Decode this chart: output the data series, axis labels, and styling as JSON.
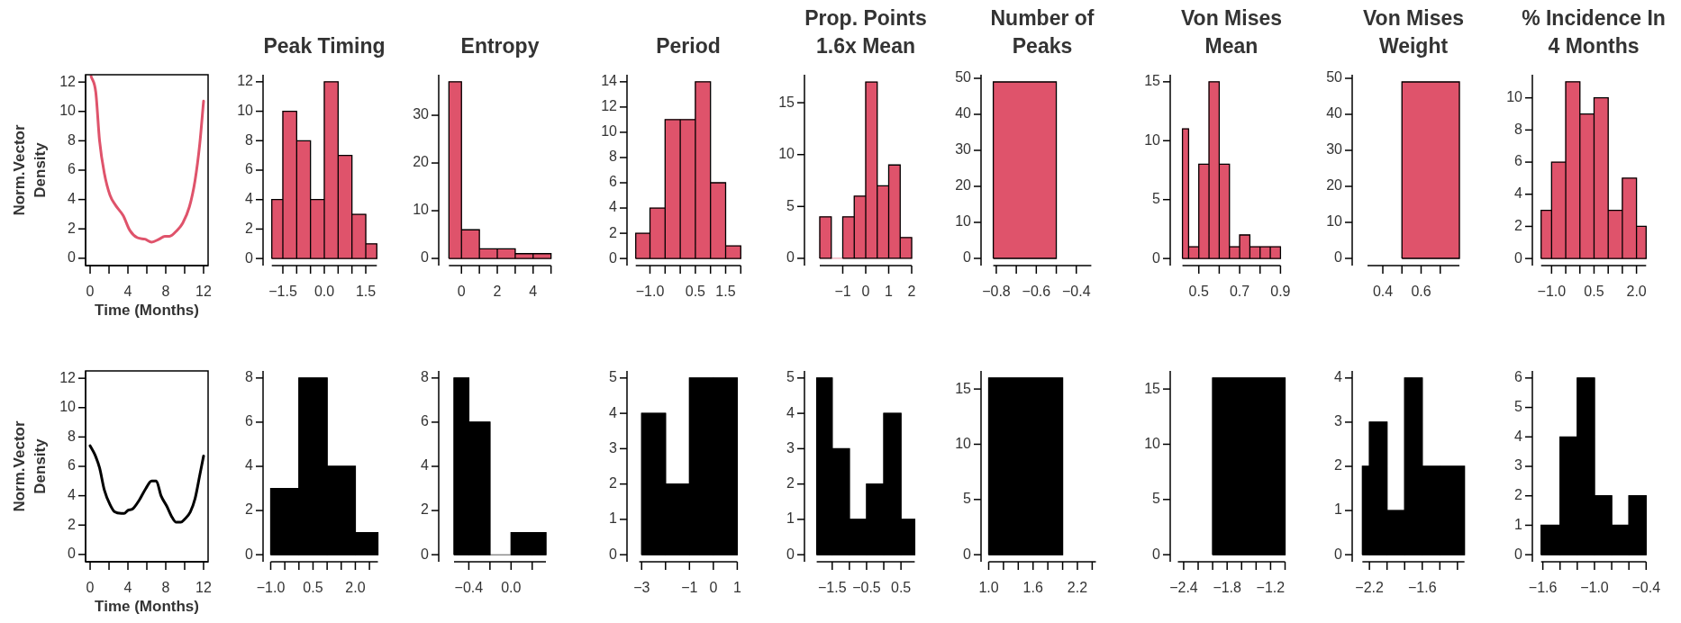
{
  "chart_data": [
    {
      "type": "line",
      "xlabel": "Time (Months)",
      "ylabel": "Norm.Vector Density",
      "color": "#df536b",
      "x": [
        0.1,
        0.6,
        1.0,
        1.5,
        2.1,
        2.7,
        3.5,
        4.2,
        5.0,
        5.8,
        6.5,
        7.3,
        7.9,
        8.4,
        9.2,
        9.8,
        10.5,
        11.1,
        11.6,
        12.0
      ],
      "values": [
        12.4,
        11.3,
        8.0,
        5.8,
        4.3,
        3.6,
        2.9,
        1.9,
        1.4,
        1.3,
        1.1,
        1.3,
        1.5,
        1.5,
        1.9,
        2.4,
        3.5,
        5.3,
        7.8,
        10.7
      ],
      "xlim": [
        -0.48,
        12.48
      ],
      "ylim": [
        -0.5,
        12.5
      ],
      "xticks": [
        0,
        {
          "value": 2,
          "label": null
        },
        4,
        {
          "value": 6,
          "label": null
        },
        8,
        {
          "value": 10,
          "label": null
        },
        12
      ],
      "yticks": [
        0,
        2,
        4,
        6,
        8,
        10,
        12
      ]
    },
    {
      "type": "histogram",
      "title": "Peak Timing",
      "color": "#df536b",
      "bins": [
        -1.9,
        -1.5,
        -1,
        -0.5,
        0,
        0.5,
        1,
        1.5,
        1.9
      ],
      "values": [
        4,
        10,
        8,
        4,
        12,
        7,
        3,
        1
      ],
      "xlim": [
        -1.9,
        1.9
      ],
      "ylim": [
        -0.48,
        12.48
      ],
      "xticks": [
        {
          "value": -1.5,
          "label": "−1.5"
        },
        {
          "value": -1,
          "label": null
        },
        {
          "value": -0.5,
          "label": null
        },
        {
          "value": 0,
          "label": "0.0"
        },
        {
          "value": 0.5,
          "label": null
        },
        {
          "value": 1,
          "label": null
        },
        {
          "value": 1.5,
          "label": "1.5"
        }
      ],
      "yticks": [
        0,
        2,
        4,
        6,
        8,
        10,
        12
      ]
    },
    {
      "type": "histogram",
      "title": "Entropy",
      "color": "#df536b",
      "bins": [
        -0.7,
        0,
        1,
        2,
        3,
        4,
        5
      ],
      "values": [
        37,
        6,
        2,
        2,
        1,
        1
      ],
      "xlim": [
        -0.7,
        5
      ],
      "ylim": [
        -1.5,
        38.5
      ],
      "xticks": [
        0,
        {
          "value": 1,
          "label": null
        },
        2,
        {
          "value": 3,
          "label": null
        },
        4,
        {
          "value": 5,
          "label": null
        }
      ],
      "yticks": [
        0,
        10,
        20,
        30
      ]
    },
    {
      "type": "histogram",
      "title": "Period",
      "color": "#df536b",
      "bins": [
        -1.47,
        -1,
        -0.5,
        0,
        0.5,
        1,
        1.5,
        2
      ],
      "values": [
        2,
        4,
        11,
        11,
        14,
        6,
        1
      ],
      "xlim": [
        -1.47,
        2
      ],
      "ylim": [
        -0.56,
        14.56
      ],
      "xticks": [
        {
          "value": -1,
          "label": "−1.0"
        },
        {
          "value": -0.5,
          "label": null
        },
        {
          "value": 0,
          "label": null
        },
        {
          "value": 0.5,
          "label": "0.5"
        },
        {
          "value": 1,
          "label": null
        },
        {
          "value": 1.5,
          "label": "1.5"
        },
        {
          "value": 2,
          "label": null
        }
      ],
      "yticks": [
        0,
        2,
        4,
        6,
        8,
        10,
        12,
        14
      ]
    },
    {
      "type": "histogram",
      "title": "Prop. Points 1.6x Mean",
      "color": "#df536b",
      "bins": [
        -2,
        -1.5,
        -1,
        -0.5,
        0,
        0.5,
        1,
        1.5,
        2
      ],
      "values": [
        4,
        0,
        4,
        6,
        17,
        7,
        9,
        2
      ],
      "xlim": [
        -2,
        2
      ],
      "ylim": [
        -0.7,
        17.7
      ],
      "xticks": [
        {
          "value": -1,
          "label": "−1"
        },
        0,
        1,
        2
      ],
      "yticks": [
        0,
        5,
        10,
        15
      ]
    },
    {
      "type": "histogram",
      "title": "Number of Peaks",
      "color": "#df536b",
      "bins": [
        -0.815,
        -0.5
      ],
      "values": [
        49
      ],
      "xlim": [
        -0.815,
        -0.325
      ],
      "ylim": [
        -2,
        51
      ],
      "xticks": [
        {
          "value": -0.8,
          "label": "−0.8"
        },
        {
          "value": -0.7,
          "label": null
        },
        {
          "value": -0.6,
          "label": "−0.6"
        },
        {
          "value": -0.5,
          "label": null
        },
        {
          "value": -0.4,
          "label": "−0.4"
        }
      ],
      "yticks": [
        0,
        10,
        20,
        30,
        40,
        50
      ]
    },
    {
      "type": "histogram",
      "title": "Von Mises Mean",
      "color": "#df536b",
      "bins": [
        0.42,
        0.45,
        0.5,
        0.55,
        0.6,
        0.65,
        0.7,
        0.75,
        0.8,
        0.85,
        0.9
      ],
      "values": [
        11,
        1,
        8,
        15,
        8,
        1,
        2,
        1,
        1,
        1
      ],
      "xlim": [
        0.42,
        0.9
      ],
      "ylim": [
        -0.6,
        15.6
      ],
      "xticks": [
        0.5,
        {
          "value": 0.6,
          "label": null
        },
        0.7,
        {
          "value": 0.8,
          "label": null
        },
        0.9
      ],
      "yticks": [
        0,
        5,
        10,
        15
      ]
    },
    {
      "type": "histogram",
      "title": "Von Mises Weight",
      "color": "#df536b",
      "bins": [
        0.5,
        0.8
      ],
      "values": [
        49
      ],
      "xlim": [
        0.32,
        0.8
      ],
      "ylim": [
        -2,
        51
      ],
      "xticks": [
        0.4,
        {
          "value": 0.5,
          "label": null
        },
        0.6,
        {
          "value": 0.7,
          "label": null
        }
      ],
      "yticks": [
        0,
        10,
        20,
        30,
        40,
        50
      ]
    },
    {
      "type": "histogram",
      "title": "% Incidence In 4 Months",
      "color": "#df536b",
      "bins": [
        -1.37,
        -1,
        -0.5,
        0,
        0.5,
        1,
        1.5,
        2,
        2.34
      ],
      "values": [
        3,
        6,
        11,
        9,
        10,
        3,
        5,
        2
      ],
      "xlim": [
        -1.37,
        2.34
      ],
      "ylim": [
        -0.44,
        11.44
      ],
      "xticks": [
        {
          "value": -1,
          "label": "−1.0"
        },
        {
          "value": -0.5,
          "label": null
        },
        {
          "value": 0,
          "label": null
        },
        {
          "value": 0.5,
          "label": "0.5"
        },
        {
          "value": 1,
          "label": null
        },
        {
          "value": 1.5,
          "label": null
        },
        {
          "value": 2,
          "label": "2.0"
        }
      ],
      "yticks": [
        0,
        2,
        4,
        6,
        8,
        10
      ]
    },
    {
      "type": "line",
      "xlabel": "Time (Months)",
      "ylabel": "Norm.Vector Density",
      "color": "#000000",
      "x": [
        0,
        0.5,
        1.0,
        1.5,
        2.1,
        2.6,
        3.3,
        3.6,
        4.0,
        4.5,
        5.2,
        5.9,
        6.5,
        7.0,
        7.5,
        8.1,
        8.7,
        9.1,
        9.6,
        10.0,
        10.6,
        11.1,
        11.6,
        12.0
      ],
      "values": [
        7.4,
        6.8,
        5.9,
        4.4,
        3.4,
        2.9,
        2.8,
        2.8,
        3.0,
        3.1,
        3.7,
        4.5,
        5.0,
        5.0,
        4.0,
        3.3,
        2.5,
        2.2,
        2.2,
        2.4,
        2.9,
        3.8,
        5.4,
        6.7
      ],
      "xlim": [
        -0.48,
        12.48
      ],
      "ylim": [
        -0.5,
        12.5
      ],
      "xticks": [
        0,
        {
          "value": 2,
          "label": null
        },
        4,
        {
          "value": 6,
          "label": null
        },
        8,
        {
          "value": 10,
          "label": null
        },
        12
      ],
      "yticks": [
        0,
        2,
        4,
        6,
        8,
        10,
        12
      ]
    },
    {
      "type": "histogram",
      "color": "#000000",
      "bins": [
        -1,
        0,
        1,
        2,
        2.8
      ],
      "values": [
        3,
        8,
        4,
        1
      ],
      "xlim": [
        -1,
        2.8
      ],
      "ylim": [
        -0.32,
        8.32
      ],
      "xticks": [
        {
          "value": -1,
          "label": "−1.0"
        },
        {
          "value": -0.5,
          "label": null
        },
        {
          "value": 0,
          "label": null
        },
        {
          "value": 0.5,
          "label": "0.5"
        },
        {
          "value": 1,
          "label": null
        },
        {
          "value": 1.5,
          "label": null
        },
        {
          "value": 2,
          "label": "2.0"
        },
        {
          "value": 2.5,
          "label": null
        }
      ],
      "yticks": [
        0,
        2,
        4,
        6,
        8
      ]
    },
    {
      "type": "histogram",
      "color": "#000000",
      "bins": [
        -0.54,
        -0.4,
        -0.2,
        0,
        0.2,
        0.33
      ],
      "values": [
        8,
        6,
        0,
        1,
        1
      ],
      "xlim": [
        -0.54,
        0.33
      ],
      "ylim": [
        -0.32,
        8.32
      ],
      "xticks": [
        {
          "value": -0.4,
          "label": "−0.4"
        },
        {
          "value": -0.2,
          "label": null
        },
        {
          "value": 0,
          "label": "0.0"
        },
        {
          "value": 0.2,
          "label": null
        }
      ],
      "yticks": [
        0,
        2,
        4,
        6,
        8
      ]
    },
    {
      "type": "histogram",
      "color": "#000000",
      "bins": [
        -3,
        -2,
        -1,
        0,
        1
      ],
      "values": [
        4,
        2,
        5,
        5
      ],
      "xlim": [
        -3.1,
        1
      ],
      "ylim": [
        -0.2,
        5.2
      ],
      "xticks": [
        {
          "value": -3,
          "label": "−3"
        },
        {
          "value": -2,
          "label": null
        },
        {
          "value": -1,
          "label": "−1"
        },
        0,
        1
      ],
      "yticks": [
        0,
        1,
        2,
        3,
        4,
        5
      ]
    },
    {
      "type": "histogram",
      "color": "#000000",
      "bins": [
        -1.95,
        -1.5,
        -1,
        -0.5,
        0,
        0.5,
        0.9
      ],
      "values": [
        5,
        3,
        1,
        2,
        4,
        1
      ],
      "xlim": [
        -1.95,
        0.9
      ],
      "ylim": [
        -0.2,
        5.2
      ],
      "xticks": [
        {
          "value": -1.5,
          "label": "−1.5"
        },
        {
          "value": -1,
          "label": null
        },
        {
          "value": -0.5,
          "label": "−0.5"
        },
        {
          "value": 0,
          "label": null
        },
        0.5
      ],
      "yticks": [
        0,
        1,
        2,
        3,
        4,
        5
      ]
    },
    {
      "type": "histogram",
      "color": "#000000",
      "bins": [
        1,
        2
      ],
      "values": [
        16
      ],
      "xlim": [
        1,
        2.45
      ],
      "ylim": [
        -0.64,
        16.64
      ],
      "xticks": [
        {
          "value": 1,
          "label": "1.0"
        },
        {
          "value": 1.2,
          "label": null
        },
        {
          "value": 1.4,
          "label": null
        },
        1.6,
        {
          "value": 1.8,
          "label": null
        },
        {
          "value": 2,
          "label": null
        },
        2.2,
        {
          "value": 2.4,
          "label": null
        }
      ],
      "yticks": [
        0,
        5,
        10,
        15
      ]
    },
    {
      "type": "histogram",
      "color": "#000000",
      "bins": [
        -2,
        -1
      ],
      "values": [
        16
      ],
      "xlim": [
        -2.48,
        -1
      ],
      "ylim": [
        -0.64,
        16.64
      ],
      "xticks": [
        {
          "value": -2.4,
          "label": "−2.4"
        },
        {
          "value": -2.2,
          "label": null
        },
        {
          "value": -2,
          "label": null
        },
        {
          "value": -1.8,
          "label": "−1.8"
        },
        {
          "value": -1.6,
          "label": null
        },
        {
          "value": -1.4,
          "label": null
        },
        {
          "value": -1.2,
          "label": "−1.2"
        },
        {
          "value": -1,
          "label": null
        }
      ],
      "yticks": [
        0,
        5,
        10,
        15
      ]
    },
    {
      "type": "histogram",
      "color": "#000000",
      "bins": [
        -2.28,
        -2.2,
        -2,
        -1.8,
        -1.6,
        -1.4,
        -1.12
      ],
      "values": [
        2,
        3,
        1,
        4,
        2,
        2
      ],
      "xlim": [
        -2.28,
        -1.12
      ],
      "ylim": [
        -0.16,
        4.16
      ],
      "xticks": [
        {
          "value": -2.2,
          "label": "−2.2"
        },
        {
          "value": -2,
          "label": null
        },
        {
          "value": -1.8,
          "label": null
        },
        {
          "value": -1.6,
          "label": "−1.6"
        },
        {
          "value": -1.4,
          "label": null
        },
        {
          "value": -1.2,
          "label": null
        }
      ],
      "yticks": [
        0,
        1,
        2,
        3,
        4
      ]
    },
    {
      "type": "histogram",
      "color": "#000000",
      "bins": [
        -1.62,
        -1.4,
        -1.2,
        -1,
        -0.8,
        -0.6,
        -0.4
      ],
      "values": [
        1,
        4,
        6,
        2,
        1,
        2
      ],
      "xlim": [
        -1.62,
        -0.4
      ],
      "ylim": [
        -0.24,
        6.24
      ],
      "xticks": [
        {
          "value": -1.6,
          "label": "−1.6"
        },
        {
          "value": -1.4,
          "label": null
        },
        {
          "value": -1.2,
          "label": null
        },
        {
          "value": -1,
          "label": "−1.0"
        },
        {
          "value": -0.8,
          "label": null
        },
        {
          "value": -0.6,
          "label": null
        },
        {
          "value": -0.4,
          "label": "−0.4"
        }
      ],
      "yticks": [
        0,
        1,
        2,
        3,
        4,
        5,
        6
      ]
    }
  ]
}
